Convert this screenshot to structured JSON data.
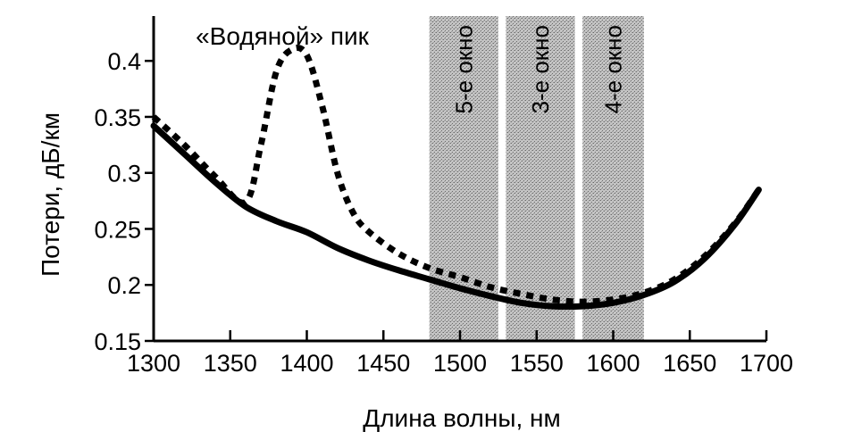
{
  "chart_data": {
    "type": "line",
    "title": "",
    "xlabel": "Длина волны, нм",
    "ylabel": "Потери, дБ/км",
    "xlim": [
      1300,
      1700
    ],
    "ylim": [
      0.15,
      0.44
    ],
    "x_ticks": [
      1300,
      1350,
      1400,
      1450,
      1500,
      1550,
      1600,
      1650,
      1700
    ],
    "y_ticks": [
      0.15,
      0.2,
      0.25,
      0.3,
      0.35,
      0.4
    ],
    "y_tick_labels": [
      "0.15",
      "0.2",
      "0.25",
      "0.3",
      "0.35",
      "0.4"
    ],
    "grid": false,
    "legend": "none",
    "series": [
      {
        "style": "solid",
        "color": "#000000",
        "x": [
          1300,
          1320,
          1340,
          1360,
          1380,
          1400,
          1420,
          1440,
          1460,
          1480,
          1500,
          1520,
          1540,
          1560,
          1580,
          1600,
          1620,
          1640,
          1660,
          1680,
          1695
        ],
        "y": [
          0.342,
          0.317,
          0.292,
          0.27,
          0.257,
          0.247,
          0.233,
          0.222,
          0.213,
          0.205,
          0.197,
          0.19,
          0.184,
          0.181,
          0.181,
          0.184,
          0.191,
          0.203,
          0.224,
          0.255,
          0.285
        ]
      },
      {
        "style": "dotted",
        "color": "#000000",
        "x": [
          1300,
          1320,
          1340,
          1360,
          1370,
          1380,
          1390,
          1400,
          1410,
          1420,
          1430,
          1440,
          1460,
          1480,
          1500,
          1520,
          1540,
          1560,
          1580,
          1600,
          1620,
          1640,
          1660,
          1680,
          1695
        ],
        "y": [
          0.35,
          0.325,
          0.297,
          0.274,
          0.325,
          0.39,
          0.41,
          0.405,
          0.36,
          0.3,
          0.265,
          0.248,
          0.228,
          0.215,
          0.207,
          0.198,
          0.192,
          0.187,
          0.185,
          0.187,
          0.193,
          0.205,
          0.226,
          0.256,
          0.285
        ]
      }
    ],
    "bands": [
      {
        "x_start": 1480,
        "x_end": 1525,
        "label": "5-е окно"
      },
      {
        "x_start": 1530,
        "x_end": 1575,
        "label": "3-е окно"
      },
      {
        "x_start": 1580,
        "x_end": 1620,
        "label": "4-е окно"
      }
    ],
    "annotations": [
      {
        "text": "«Водяной» пик",
        "x": 1395,
        "y": 0.43
      }
    ]
  }
}
